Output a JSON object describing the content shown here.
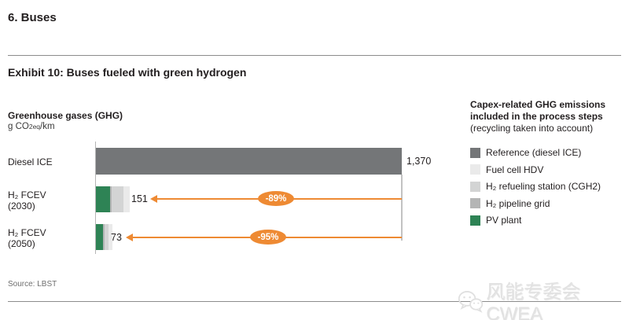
{
  "header": {
    "section_title": "6. Buses",
    "exhibit_title": "Exhibit 10: Buses fueled with green hydrogen"
  },
  "chart_data": {
    "type": "bar",
    "orientation": "horizontal",
    "stacked": true,
    "title": "Greenhouse gases (GHG)",
    "unit": "g CO2eq/km",
    "unit_parts": {
      "pre": "g CO",
      "sub": "2eq",
      "post": "/km"
    },
    "xlim": [
      0,
      1370
    ],
    "grid": false,
    "bars": [
      {
        "category": "Diesel ICE",
        "label_lines": [
          "Diesel ICE",
          ""
        ],
        "total": 1370,
        "total_label": "1,370",
        "reduction_vs_reference": null,
        "segments": [
          {
            "series": "Reference (diesel ICE)",
            "value": 1370,
            "color": "#747678"
          }
        ]
      },
      {
        "category": "H₂ FCEV (2030)",
        "label_lines": [
          "H₂ FCEV",
          "(2030)"
        ],
        "total": 151,
        "total_label": "151",
        "reduction_vs_reference": "-89%",
        "segments": [
          {
            "series": "PV plant",
            "value": 63,
            "color": "#2e8355"
          },
          {
            "series": "H₂ pipeline grid",
            "value": 9,
            "color": "#b4b5b5"
          },
          {
            "series": "H₂ refueling station (CGH2)",
            "value": 53,
            "color": "#d3d4d4"
          },
          {
            "series": "Fuel cell HDV",
            "value": 26,
            "color": "#eaeaea"
          }
        ]
      },
      {
        "category": "H₂ FCEV (2050)",
        "label_lines": [
          "H₂ FCEV",
          "(2050)"
        ],
        "total": 73,
        "total_label": "73",
        "reduction_vs_reference": "-95%",
        "segments": [
          {
            "series": "PV plant",
            "value": 32,
            "color": "#2e8355"
          },
          {
            "series": "H₂ pipeline grid",
            "value": 7,
            "color": "#b4b5b5"
          },
          {
            "series": "H₂ refueling station (CGH2)",
            "value": 17,
            "color": "#d3d4d4"
          },
          {
            "series": "Fuel cell HDV",
            "value": 17,
            "color": "#eaeaea"
          }
        ]
      }
    ]
  },
  "legend": {
    "title_line1": "Capex-related GHG emissions",
    "title_line2": "included in the process steps",
    "note": "(recycling taken into account)",
    "items": [
      {
        "label": "Reference (diesel ICE)",
        "color": "#747678"
      },
      {
        "label": "Fuel cell HDV",
        "color": "#eaeaea"
      },
      {
        "label": "H₂ refueling station (CGH2)",
        "color": "#d3d4d4"
      },
      {
        "label": "H₂ pipeline grid",
        "color": "#b4b5b5"
      },
      {
        "label": "PV plant",
        "color": "#2e8355"
      }
    ]
  },
  "footer": {
    "source": "Source: LBST",
    "watermark": "风能专委会CWEA"
  },
  "colors": {
    "orange": "#ee8a33",
    "reference_gray": "#747678",
    "fuel_cell_gray": "#eaeaea",
    "refueling_gray": "#d3d4d4",
    "pipeline_gray": "#b4b5b5",
    "pv_green": "#2e8355"
  }
}
